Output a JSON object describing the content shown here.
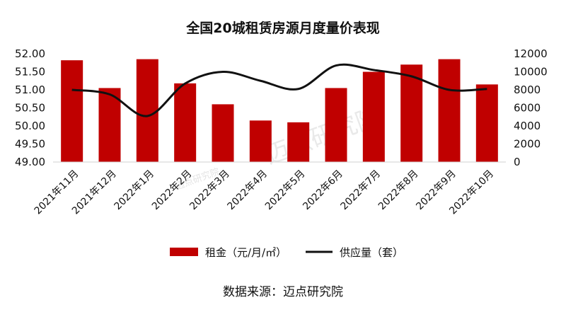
{
  "chart_data": {
    "type": "bar+line",
    "title": "全国20城租赁房源月度量价表现",
    "categories": [
      "2021年11月",
      "2021年12月",
      "2022年1月",
      "2022年2月",
      "2022年3月",
      "2022年4月",
      "2022年5月",
      "2022年6月",
      "2022年7月",
      "2022年8月",
      "2022年9月",
      "2022年10月"
    ],
    "series": [
      {
        "name": "租金（元/月/㎡）",
        "type": "bar",
        "axis": "left",
        "color": "#c00000",
        "values": [
          51.82,
          51.05,
          51.85,
          51.18,
          50.6,
          50.15,
          50.1,
          51.05,
          51.5,
          51.7,
          51.85,
          51.15
        ]
      },
      {
        "name": "供应量（套）",
        "type": "line",
        "axis": "right",
        "color": "#111111",
        "values": [
          8000,
          7500,
          5100,
          8700,
          10000,
          9000,
          8100,
          10700,
          10200,
          9500,
          8000,
          8100
        ]
      }
    ],
    "y_left": {
      "ylim": [
        49.0,
        52.0
      ],
      "ticks": [
        "52.00",
        "51.50",
        "51.00",
        "50.50",
        "50.00",
        "49.50",
        "49.00"
      ]
    },
    "y_right": {
      "ylim": [
        0,
        12000
      ],
      "ticks": [
        "12000",
        "10000",
        "8000",
        "6000",
        "4000",
        "2000",
        "0"
      ]
    },
    "grid": false,
    "legend_position": "bottom"
  },
  "watermarks": {
    "main": "迈点研究院",
    "small": "迈点研究院"
  },
  "source_text": "数据来源：迈点研究院"
}
